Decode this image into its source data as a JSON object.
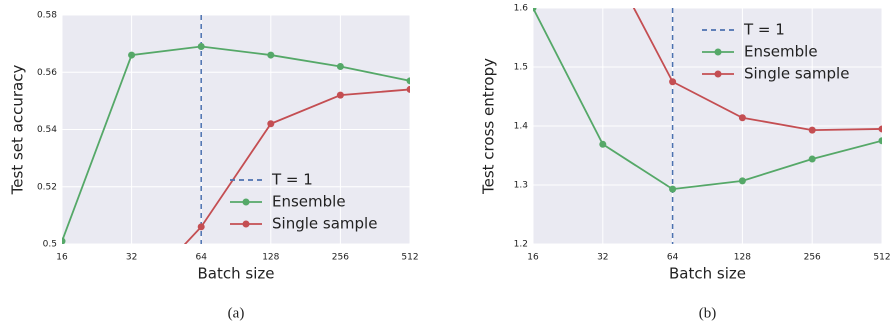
{
  "chart_data": [
    {
      "type": "line",
      "caption": "(a)",
      "xlabel": "Batch size",
      "ylabel": "Test set accuracy",
      "x": [
        16,
        32,
        64,
        128,
        256,
        512
      ],
      "log_x": true,
      "xlim": [
        16,
        512
      ],
      "xticks": [
        16,
        32,
        64,
        128,
        256,
        512
      ],
      "ylim": [
        0.5,
        0.58
      ],
      "yticks": [
        {
          "value": 0.5,
          "label": "0.5"
        },
        0.52,
        0.54,
        0.56,
        0.58
      ],
      "grid": true,
      "legend": "lower right",
      "vline": {
        "name": "T = 1",
        "x": 64,
        "color": "#4c72b0"
      },
      "series": [
        {
          "name": "Ensemble",
          "color": "#55a868",
          "values": [
            0.501,
            0.566,
            0.569,
            0.566,
            0.562,
            0.557
          ]
        },
        {
          "name": "Single sample",
          "color": "#c44e52",
          "values": [
            null,
            0.48,
            0.506,
            0.542,
            0.552,
            0.554
          ]
        }
      ]
    },
    {
      "type": "line",
      "caption": "(b)",
      "xlabel": "Batch size",
      "ylabel": "Test cross entropy",
      "x": [
        16,
        32,
        64,
        128,
        256,
        512
      ],
      "log_x": true,
      "xlim": [
        16,
        512
      ],
      "xticks": [
        16,
        32,
        64,
        128,
        256,
        512
      ],
      "ylim": [
        1.2,
        1.6
      ],
      "yticks": [
        1.2,
        1.3,
        1.4,
        1.5,
        1.6
      ],
      "grid": true,
      "legend": "upper right",
      "vline": {
        "name": "T = 1",
        "x": 64,
        "color": "#4c72b0"
      },
      "series": [
        {
          "name": "Ensemble",
          "color": "#55a868",
          "values": [
            1.6,
            1.369,
            1.293,
            1.307,
            1.344,
            1.375
          ]
        },
        {
          "name": "Single sample",
          "color": "#c44e52",
          "values": [
            null,
            1.7,
            1.475,
            1.414,
            1.393,
            1.395
          ]
        }
      ]
    }
  ]
}
